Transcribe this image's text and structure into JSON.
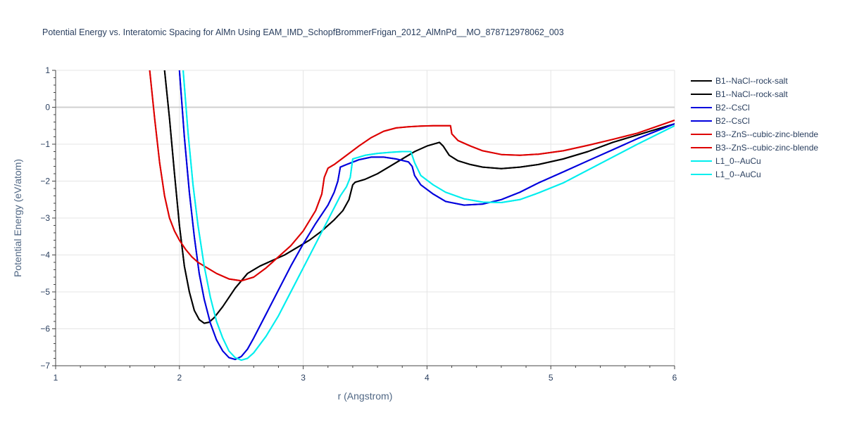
{
  "chart_data": {
    "type": "line",
    "title": "Potential Energy vs. Interatomic Spacing for AlMn Using EAM_IMD_SchopfBrommerFrigan_2012_AlMnPd__MO_878712978062_003",
    "xlabel": "r (Angstrom)",
    "ylabel": "Potential Energy (eV/atom)",
    "xlim": [
      1,
      6
    ],
    "ylim": [
      -7,
      1
    ],
    "xticks": [
      1,
      2,
      3,
      4,
      5,
      6
    ],
    "yticks": [
      1,
      0,
      -1,
      -2,
      -3,
      -4,
      -5,
      -6,
      -7
    ],
    "grid": true,
    "legend_position": "top-right",
    "series": [
      {
        "name": "B1--NaCl--rock-salt",
        "color": "#000000",
        "x": [
          1.88,
          1.92,
          1.96,
          2.0,
          2.04,
          2.08,
          2.12,
          2.16,
          2.2,
          2.24,
          2.28,
          2.35,
          2.45,
          2.55,
          2.65,
          2.75,
          2.85,
          2.95,
          3.05,
          3.15,
          3.25,
          3.32,
          3.37,
          3.4,
          3.42,
          3.5,
          3.6,
          3.7,
          3.8,
          3.9,
          4.0,
          4.1,
          4.13,
          4.18,
          4.25,
          4.35,
          4.45,
          4.6,
          4.75,
          4.9,
          5.1,
          5.3,
          5.5,
          5.7,
          6.0
        ],
        "y": [
          1.0,
          -0.3,
          -1.8,
          -3.2,
          -4.3,
          -5.0,
          -5.5,
          -5.75,
          -5.85,
          -5.82,
          -5.7,
          -5.4,
          -4.9,
          -4.5,
          -4.3,
          -4.15,
          -4.0,
          -3.8,
          -3.6,
          -3.35,
          -3.05,
          -2.8,
          -2.5,
          -2.1,
          -2.03,
          -1.95,
          -1.8,
          -1.6,
          -1.4,
          -1.2,
          -1.05,
          -0.95,
          -1.05,
          -1.3,
          -1.45,
          -1.55,
          -1.62,
          -1.66,
          -1.62,
          -1.55,
          -1.4,
          -1.2,
          -0.95,
          -0.75,
          -0.45
        ]
      },
      {
        "name": "B1--NaCl--rock-salt",
        "color": "#000000",
        "x": [
          1.88,
          1.92,
          1.96,
          2.0,
          2.04,
          2.08,
          2.12,
          2.16,
          2.2,
          2.24,
          2.28,
          2.35,
          2.45,
          2.55,
          2.65,
          2.75,
          2.85,
          2.95,
          3.05,
          3.15,
          3.25,
          3.32,
          3.37,
          3.4,
          3.42,
          3.5,
          3.6,
          3.7,
          3.8,
          3.9,
          4.0,
          4.1,
          4.13,
          4.18,
          4.25,
          4.35,
          4.45,
          4.6,
          4.75,
          4.9,
          5.1,
          5.3,
          5.5,
          5.7,
          6.0
        ],
        "y": [
          1.0,
          -0.3,
          -1.8,
          -3.2,
          -4.3,
          -5.0,
          -5.5,
          -5.75,
          -5.85,
          -5.82,
          -5.7,
          -5.4,
          -4.9,
          -4.5,
          -4.3,
          -4.15,
          -4.0,
          -3.8,
          -3.6,
          -3.35,
          -3.05,
          -2.8,
          -2.5,
          -2.1,
          -2.03,
          -1.95,
          -1.8,
          -1.6,
          -1.4,
          -1.2,
          -1.05,
          -0.95,
          -1.05,
          -1.3,
          -1.45,
          -1.55,
          -1.62,
          -1.66,
          -1.62,
          -1.55,
          -1.4,
          -1.2,
          -0.95,
          -0.75,
          -0.45
        ]
      },
      {
        "name": "B2--CsCl",
        "color": "#0000dd",
        "x": [
          2.0,
          2.04,
          2.08,
          2.12,
          2.16,
          2.2,
          2.25,
          2.3,
          2.35,
          2.4,
          2.45,
          2.5,
          2.55,
          2.6,
          2.7,
          2.8,
          2.9,
          3.0,
          3.1,
          3.2,
          3.25,
          3.28,
          3.3,
          3.35,
          3.45,
          3.55,
          3.65,
          3.75,
          3.85,
          3.88,
          3.9,
          3.95,
          4.05,
          4.15,
          4.3,
          4.45,
          4.6,
          4.75,
          4.9,
          5.1,
          5.3,
          5.5,
          5.7,
          6.0
        ],
        "y": [
          1.0,
          -0.8,
          -2.3,
          -3.5,
          -4.5,
          -5.2,
          -5.85,
          -6.3,
          -6.6,
          -6.78,
          -6.83,
          -6.75,
          -6.55,
          -6.25,
          -5.6,
          -4.95,
          -4.3,
          -3.7,
          -3.15,
          -2.65,
          -2.3,
          -2.0,
          -1.62,
          -1.55,
          -1.42,
          -1.35,
          -1.35,
          -1.4,
          -1.48,
          -1.6,
          -1.85,
          -2.1,
          -2.35,
          -2.55,
          -2.65,
          -2.62,
          -2.5,
          -2.3,
          -2.05,
          -1.75,
          -1.45,
          -1.15,
          -0.85,
          -0.45
        ]
      },
      {
        "name": "B2--CsCl",
        "color": "#0000dd",
        "x": [
          2.0,
          2.04,
          2.08,
          2.12,
          2.16,
          2.2,
          2.25,
          2.3,
          2.35,
          2.4,
          2.45,
          2.5,
          2.55,
          2.6,
          2.7,
          2.8,
          2.9,
          3.0,
          3.1,
          3.2,
          3.25,
          3.28,
          3.3,
          3.35,
          3.45,
          3.55,
          3.65,
          3.75,
          3.85,
          3.88,
          3.9,
          3.95,
          4.05,
          4.15,
          4.3,
          4.45,
          4.6,
          4.75,
          4.9,
          5.1,
          5.3,
          5.5,
          5.7,
          6.0
        ],
        "y": [
          1.0,
          -0.8,
          -2.3,
          -3.5,
          -4.5,
          -5.2,
          -5.85,
          -6.3,
          -6.6,
          -6.78,
          -6.83,
          -6.75,
          -6.55,
          -6.25,
          -5.6,
          -4.95,
          -4.3,
          -3.7,
          -3.15,
          -2.65,
          -2.3,
          -2.0,
          -1.62,
          -1.55,
          -1.42,
          -1.35,
          -1.35,
          -1.4,
          -1.48,
          -1.6,
          -1.85,
          -2.1,
          -2.35,
          -2.55,
          -2.65,
          -2.62,
          -2.5,
          -2.3,
          -2.05,
          -1.75,
          -1.45,
          -1.15,
          -0.85,
          -0.45
        ]
      },
      {
        "name": "B3--ZnS--cubic-zinc-blende",
        "color": "#dd0000",
        "x": [
          1.76,
          1.8,
          1.84,
          1.88,
          1.92,
          1.96,
          2.0,
          2.05,
          2.1,
          2.15,
          2.2,
          2.3,
          2.4,
          2.5,
          2.6,
          2.7,
          2.8,
          2.9,
          3.0,
          3.1,
          3.15,
          3.17,
          3.2,
          3.25,
          3.35,
          3.45,
          3.55,
          3.65,
          3.75,
          3.85,
          3.95,
          4.05,
          4.15,
          4.19,
          4.2,
          4.25,
          4.35,
          4.45,
          4.6,
          4.75,
          4.9,
          5.1,
          5.3,
          5.5,
          5.7,
          6.0
        ],
        "y": [
          1.0,
          -0.3,
          -1.5,
          -2.4,
          -3.0,
          -3.35,
          -3.6,
          -3.85,
          -4.05,
          -4.2,
          -4.3,
          -4.5,
          -4.65,
          -4.7,
          -4.6,
          -4.35,
          -4.05,
          -3.75,
          -3.35,
          -2.8,
          -2.35,
          -1.9,
          -1.65,
          -1.55,
          -1.3,
          -1.05,
          -0.82,
          -0.65,
          -0.56,
          -0.53,
          -0.51,
          -0.5,
          -0.5,
          -0.5,
          -0.72,
          -0.9,
          -1.05,
          -1.18,
          -1.28,
          -1.3,
          -1.27,
          -1.18,
          -1.03,
          -0.87,
          -0.7,
          -0.35
        ]
      },
      {
        "name": "B3--ZnS--cubic-zinc-blende",
        "color": "#dd0000",
        "x": [
          1.76,
          1.8,
          1.84,
          1.88,
          1.92,
          1.96,
          2.0,
          2.05,
          2.1,
          2.15,
          2.2,
          2.3,
          2.4,
          2.5,
          2.6,
          2.7,
          2.8,
          2.9,
          3.0,
          3.1,
          3.15,
          3.17,
          3.2,
          3.25,
          3.35,
          3.45,
          3.55,
          3.65,
          3.75,
          3.85,
          3.95,
          4.05,
          4.15,
          4.19,
          4.2,
          4.25,
          4.35,
          4.45,
          4.6,
          4.75,
          4.9,
          5.1,
          5.3,
          5.5,
          5.7,
          6.0
        ],
        "y": [
          1.0,
          -0.3,
          -1.5,
          -2.4,
          -3.0,
          -3.35,
          -3.6,
          -3.85,
          -4.05,
          -4.2,
          -4.3,
          -4.5,
          -4.65,
          -4.7,
          -4.6,
          -4.35,
          -4.05,
          -3.75,
          -3.35,
          -2.8,
          -2.35,
          -1.9,
          -1.65,
          -1.55,
          -1.3,
          -1.05,
          -0.82,
          -0.65,
          -0.56,
          -0.53,
          -0.51,
          -0.5,
          -0.5,
          -0.5,
          -0.72,
          -0.9,
          -1.05,
          -1.18,
          -1.28,
          -1.3,
          -1.27,
          -1.18,
          -1.03,
          -0.87,
          -0.7,
          -0.35
        ]
      },
      {
        "name": "L1_0--AuCu",
        "color": "#00eeee",
        "x": [
          2.03,
          2.07,
          2.11,
          2.15,
          2.2,
          2.25,
          2.3,
          2.35,
          2.4,
          2.45,
          2.5,
          2.55,
          2.6,
          2.7,
          2.8,
          2.9,
          3.0,
          3.1,
          3.2,
          3.3,
          3.35,
          3.38,
          3.4,
          3.5,
          3.6,
          3.7,
          3.8,
          3.87,
          3.9,
          3.95,
          4.05,
          4.15,
          4.3,
          4.45,
          4.6,
          4.75,
          4.9,
          5.1,
          5.3,
          5.5,
          5.7,
          6.0
        ],
        "y": [
          1.0,
          -0.7,
          -2.1,
          -3.2,
          -4.3,
          -5.15,
          -5.8,
          -6.25,
          -6.6,
          -6.78,
          -6.85,
          -6.8,
          -6.65,
          -6.2,
          -5.65,
          -5.0,
          -4.35,
          -3.7,
          -3.05,
          -2.4,
          -2.15,
          -1.9,
          -1.4,
          -1.3,
          -1.25,
          -1.22,
          -1.2,
          -1.2,
          -1.5,
          -1.85,
          -2.1,
          -2.3,
          -2.48,
          -2.57,
          -2.58,
          -2.5,
          -2.32,
          -2.05,
          -1.7,
          -1.35,
          -1.0,
          -0.5
        ]
      },
      {
        "name": "L1_0--AuCu",
        "color": "#00eeee",
        "x": [
          2.03,
          2.07,
          2.11,
          2.15,
          2.2,
          2.25,
          2.3,
          2.35,
          2.4,
          2.45,
          2.5,
          2.55,
          2.6,
          2.7,
          2.8,
          2.9,
          3.0,
          3.1,
          3.2,
          3.3,
          3.35,
          3.38,
          3.4,
          3.5,
          3.6,
          3.7,
          3.8,
          3.87,
          3.9,
          3.95,
          4.05,
          4.15,
          4.3,
          4.45,
          4.6,
          4.75,
          4.9,
          5.1,
          5.3,
          5.5,
          5.7,
          6.0
        ],
        "y": [
          1.0,
          -0.7,
          -2.1,
          -3.2,
          -4.3,
          -5.15,
          -5.8,
          -6.25,
          -6.6,
          -6.78,
          -6.85,
          -6.8,
          -6.65,
          -6.2,
          -5.65,
          -5.0,
          -4.35,
          -3.7,
          -3.05,
          -2.4,
          -2.15,
          -1.9,
          -1.4,
          -1.3,
          -1.25,
          -1.22,
          -1.2,
          -1.2,
          -1.5,
          -1.85,
          -2.1,
          -2.3,
          -2.48,
          -2.57,
          -2.58,
          -2.5,
          -2.32,
          -2.05,
          -1.7,
          -1.35,
          -1.0,
          -0.5
        ]
      }
    ]
  }
}
